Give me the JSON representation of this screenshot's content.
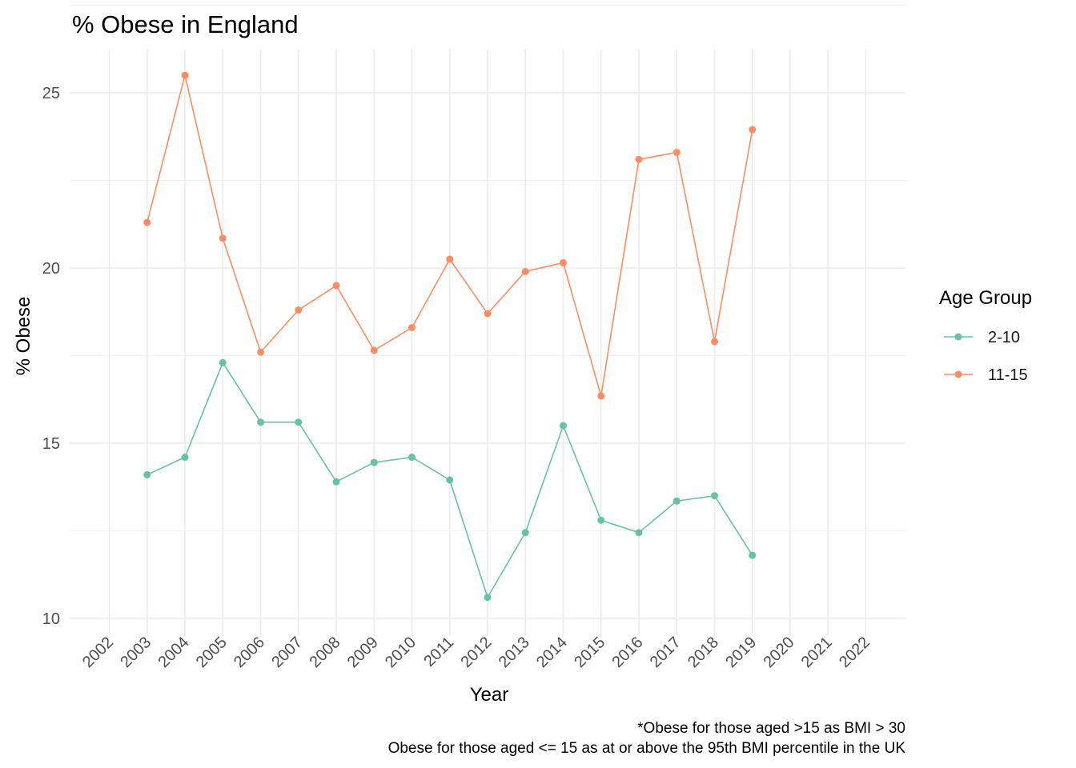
{
  "chart_data": {
    "type": "line",
    "title": "% Obese in England",
    "xlabel": "Year",
    "ylabel": "% Obese",
    "x_ticks": [
      "2002",
      "2003",
      "2004",
      "2005",
      "2006",
      "2007",
      "2008",
      "2009",
      "2010",
      "2011",
      "2012",
      "2013",
      "2014",
      "2015",
      "2016",
      "2017",
      "2018",
      "2019",
      "2020",
      "2021",
      "2022"
    ],
    "xlim": [
      2002,
      2022
    ],
    "ylim": [
      10,
      26
    ],
    "y_ticks": [
      10,
      15,
      20,
      25
    ],
    "grid": true,
    "legend": {
      "title": "Age Group",
      "position": "right"
    },
    "series": [
      {
        "name": "2-10",
        "color": "#66c2a5",
        "x": [
          2003,
          2004,
          2005,
          2006,
          2007,
          2008,
          2009,
          2010,
          2011,
          2012,
          2013,
          2014,
          2015,
          2016,
          2017,
          2018,
          2019
        ],
        "values": [
          14.1,
          14.6,
          17.3,
          15.6,
          15.6,
          13.9,
          14.45,
          14.6,
          13.95,
          10.6,
          12.45,
          15.5,
          12.8,
          12.45,
          13.35,
          13.5,
          11.8
        ]
      },
      {
        "name": "11-15",
        "color": "#fc8d62",
        "x": [
          2003,
          2004,
          2005,
          2006,
          2007,
          2008,
          2009,
          2010,
          2011,
          2012,
          2013,
          2014,
          2015,
          2016,
          2017,
          2018,
          2019
        ],
        "values": [
          21.3,
          25.5,
          20.85,
          17.6,
          18.8,
          19.5,
          17.65,
          18.3,
          20.25,
          18.7,
          19.9,
          20.15,
          16.35,
          23.1,
          23.3,
          17.9,
          23.95
        ]
      }
    ],
    "caption": [
      "*Obese for those aged >15 as BMI > 30",
      "Obese for those aged <= 15 as at or above the 95th BMI percentile in the UK"
    ]
  }
}
